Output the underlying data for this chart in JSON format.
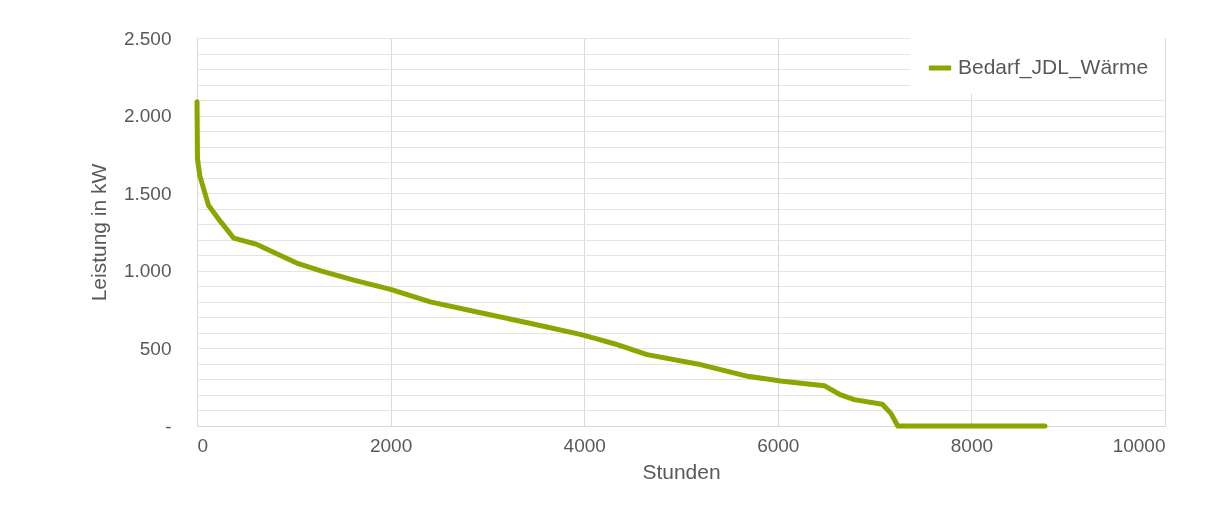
{
  "chart_data": {
    "type": "line",
    "xlabel": "Stunden",
    "ylabel": "Leistung in kW",
    "xlim": [
      0,
      10000
    ],
    "ylim": [
      0,
      2500
    ],
    "xticks": [
      0,
      2000,
      4000,
      6000,
      8000,
      10000
    ],
    "yticks": [
      {
        "value": 0,
        "label": "-"
      },
      {
        "value": 100,
        "label": null
      },
      {
        "value": 200,
        "label": null
      },
      {
        "value": 300,
        "label": null
      },
      {
        "value": 400,
        "label": null
      },
      500,
      {
        "value": 600,
        "label": null
      },
      {
        "value": 700,
        "label": null
      },
      {
        "value": 800,
        "label": null
      },
      {
        "value": 900,
        "label": null
      },
      {
        "value": 1000,
        "label": "1.000"
      },
      {
        "value": 1100,
        "label": null
      },
      {
        "value": 1200,
        "label": null
      },
      {
        "value": 1300,
        "label": null
      },
      {
        "value": 1400,
        "label": null
      },
      {
        "value": 1500,
        "label": "1.500"
      },
      {
        "value": 1600,
        "label": null
      },
      {
        "value": 1700,
        "label": null
      },
      {
        "value": 1800,
        "label": null
      },
      {
        "value": 1900,
        "label": null
      },
      {
        "value": 2000,
        "label": "2.000"
      },
      {
        "value": 2100,
        "label": null
      },
      {
        "value": 2200,
        "label": null
      },
      {
        "value": 2300,
        "label": null
      },
      {
        "value": 2400,
        "label": null
      },
      {
        "value": 2500,
        "label": "2.500"
      }
    ],
    "grid": true,
    "legend": "top right",
    "marker": "none",
    "line_style": "solid",
    "series": [
      {
        "name": "Bedarf_JDL_Wärme",
        "color": "#8aa600",
        "x": [
          0,
          5,
          30,
          120,
          240,
          380,
          620,
          790,
          1030,
          1280,
          1620,
          2000,
          2410,
          2930,
          3450,
          3960,
          4140,
          4310,
          4650,
          5170,
          5690,
          6030,
          6480,
          6650,
          6790,
          7080,
          7170,
          7240,
          8760
        ],
        "values": [
          2090,
          1720,
          1610,
          1420,
          1320,
          1210,
          1170,
          1120,
          1050,
          1000,
          940,
          880,
          800,
          730,
          660,
          590,
          560,
          530,
          460,
          400,
          320,
          290,
          260,
          200,
          170,
          140,
          80,
          0,
          0
        ]
      }
    ]
  }
}
